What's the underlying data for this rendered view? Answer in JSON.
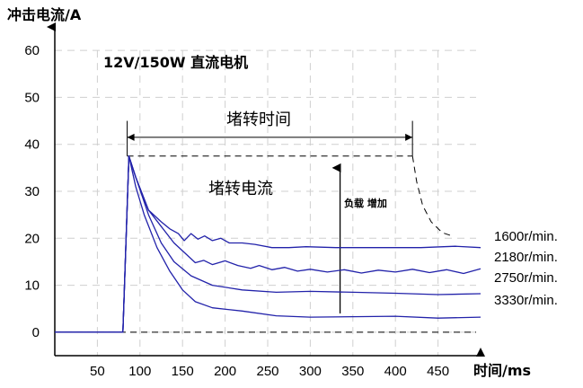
{
  "chart_data": {
    "type": "line",
    "title": "12V/150W 直流电机",
    "ylabel": "冲击电流/A",
    "xlabel": "时间/ms",
    "xticks": [
      50,
      100,
      150,
      200,
      250,
      300,
      350,
      400,
      450
    ],
    "yticks": [
      0,
      10,
      20,
      30,
      40,
      50,
      60
    ],
    "xlim": [
      0,
      500
    ],
    "ylim": [
      -5,
      65
    ],
    "grid": true,
    "annotations": {
      "stall_time": "堵转时间",
      "stall_current": "堵转电流",
      "load_increase": "负载 增加"
    },
    "stall": {
      "level": 37.5,
      "x_start": 85,
      "x_end": 420,
      "decay": [
        [
          420,
          37.5
        ],
        [
          425,
          32
        ],
        [
          432,
          27
        ],
        [
          442,
          23.5
        ],
        [
          455,
          21.2
        ],
        [
          468,
          20.4
        ]
      ]
    },
    "zero_line": {
      "y": 0,
      "x_start": 0,
      "x_end": 500
    },
    "series": [
      {
        "name": "1600r/min.",
        "points": [
          [
            0,
            0
          ],
          [
            80,
            0
          ],
          [
            87,
            37.5
          ],
          [
            95,
            33
          ],
          [
            110,
            26
          ],
          [
            125,
            23.5
          ],
          [
            135,
            22
          ],
          [
            145,
            21
          ],
          [
            152,
            19.5
          ],
          [
            160,
            21
          ],
          [
            168,
            19.8
          ],
          [
            176,
            20.5
          ],
          [
            185,
            19.5
          ],
          [
            195,
            20
          ],
          [
            205,
            19
          ],
          [
            220,
            19
          ],
          [
            235,
            18.7
          ],
          [
            255,
            18
          ],
          [
            275,
            18
          ],
          [
            295,
            18.2
          ],
          [
            330,
            18
          ],
          [
            380,
            18
          ],
          [
            430,
            18
          ],
          [
            470,
            18.3
          ],
          [
            500,
            18
          ]
        ]
      },
      {
        "name": "2180r/min.",
        "points": [
          [
            0,
            0
          ],
          [
            80,
            0
          ],
          [
            87,
            37.5
          ],
          [
            95,
            33
          ],
          [
            110,
            26
          ],
          [
            125,
            22.5
          ],
          [
            140,
            19
          ],
          [
            155,
            16.5
          ],
          [
            165,
            14.8
          ],
          [
            175,
            15.3
          ],
          [
            185,
            14.4
          ],
          [
            200,
            15.2
          ],
          [
            215,
            14.2
          ],
          [
            230,
            13.6
          ],
          [
            240,
            14.2
          ],
          [
            255,
            13.3
          ],
          [
            270,
            13.8
          ],
          [
            285,
            13
          ],
          [
            300,
            13.4
          ],
          [
            320,
            12.8
          ],
          [
            340,
            13.3
          ],
          [
            360,
            12.6
          ],
          [
            380,
            13.2
          ],
          [
            400,
            12.8
          ],
          [
            420,
            13.4
          ],
          [
            440,
            12.7
          ],
          [
            460,
            13.3
          ],
          [
            480,
            12.5
          ],
          [
            500,
            13.5
          ]
        ]
      },
      {
        "name": "2750r/min.",
        "points": [
          [
            0,
            0
          ],
          [
            80,
            0
          ],
          [
            87,
            37.5
          ],
          [
            95,
            33
          ],
          [
            110,
            25
          ],
          [
            125,
            19
          ],
          [
            140,
            15
          ],
          [
            160,
            12
          ],
          [
            185,
            10
          ],
          [
            220,
            9
          ],
          [
            260,
            8.5
          ],
          [
            300,
            8.7
          ],
          [
            350,
            8.5
          ],
          [
            400,
            8.3
          ],
          [
            450,
            8
          ],
          [
            500,
            8.2
          ]
        ]
      },
      {
        "name": "3330r/min.",
        "points": [
          [
            0,
            0
          ],
          [
            80,
            0
          ],
          [
            87,
            37.5
          ],
          [
            95,
            31
          ],
          [
            105,
            25
          ],
          [
            120,
            18
          ],
          [
            135,
            13
          ],
          [
            150,
            9
          ],
          [
            165,
            6.5
          ],
          [
            185,
            5.2
          ],
          [
            220,
            4.5
          ],
          [
            260,
            3.5
          ],
          [
            300,
            3.2
          ],
          [
            350,
            3.3
          ],
          [
            400,
            3.4
          ],
          [
            450,
            3
          ],
          [
            500,
            3.2
          ]
        ]
      }
    ]
  }
}
